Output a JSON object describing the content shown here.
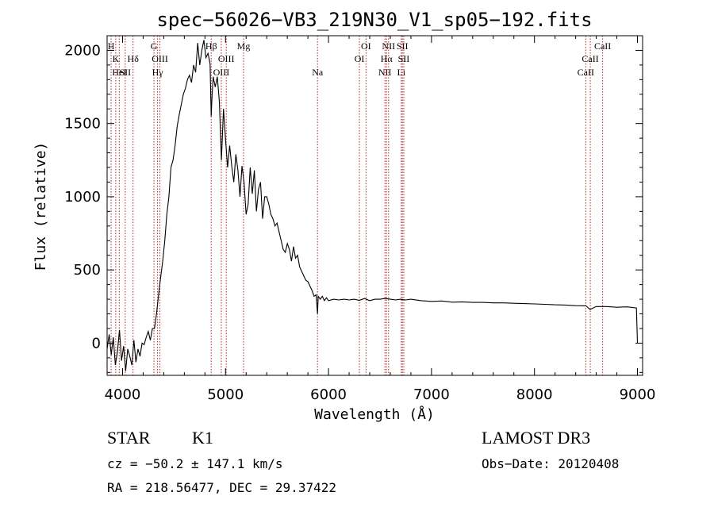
{
  "chart_data": {
    "type": "line",
    "title": "spec−56026−VB3_219N30_V1_sp05−192.fits",
    "xlabel": "Wavelength (Å)",
    "ylabel": "Flux (relative)",
    "xlim": [
      3850,
      9050
    ],
    "ylim": [
      -220,
      2100
    ],
    "xticks": [
      4000,
      5000,
      6000,
      7000,
      8000,
      9000
    ],
    "yticks": [
      0,
      500,
      1000,
      1500,
      2000
    ],
    "xtick_labels": [
      "4000",
      "5000",
      "6000",
      "7000",
      "8000",
      "9000"
    ],
    "ytick_labels": [
      "0",
      "500",
      "1000",
      "1500",
      "2000"
    ],
    "grid": false,
    "spectrum": {
      "x": [
        3850,
        3870,
        3890,
        3910,
        3930,
        3950,
        3970,
        3990,
        4010,
        4030,
        4050,
        4070,
        4090,
        4110,
        4130,
        4150,
        4170,
        4190,
        4210,
        4230,
        4250,
        4270,
        4290,
        4310,
        4330,
        4350,
        4370,
        4390,
        4410,
        4430,
        4450,
        4470,
        4490,
        4510,
        4530,
        4550,
        4570,
        4590,
        4610,
        4630,
        4650,
        4670,
        4690,
        4710,
        4730,
        4750,
        4770,
        4790,
        4810,
        4830,
        4850,
        4861,
        4870,
        4880,
        4900,
        4920,
        4940,
        4960,
        4980,
        5000,
        5020,
        5040,
        5060,
        5080,
        5100,
        5120,
        5140,
        5160,
        5180,
        5200,
        5220,
        5240,
        5260,
        5280,
        5300,
        5320,
        5340,
        5360,
        5380,
        5400,
        5420,
        5440,
        5460,
        5480,
        5500,
        5520,
        5540,
        5560,
        5580,
        5600,
        5620,
        5640,
        5660,
        5680,
        5700,
        5720,
        5740,
        5760,
        5780,
        5800,
        5820,
        5840,
        5860,
        5880,
        5893,
        5900,
        5920,
        5940,
        5960,
        5980,
        6000,
        6050,
        6100,
        6150,
        6200,
        6250,
        6300,
        6350,
        6400,
        6450,
        6500,
        6550,
        6600,
        6650,
        6700,
        6750,
        6800,
        6900,
        7000,
        7100,
        7200,
        7300,
        7400,
        7500,
        7600,
        7700,
        7800,
        7900,
        8000,
        8100,
        8200,
        8300,
        8400,
        8500,
        8540,
        8600,
        8700,
        8800,
        8900,
        8990,
        9000
      ],
      "y": [
        -40,
        60,
        -80,
        40,
        -150,
        -60,
        90,
        -120,
        -20,
        -190,
        -40,
        -90,
        -150,
        20,
        -130,
        -40,
        -90,
        0,
        -10,
        40,
        80,
        20,
        100,
        100,
        200,
        330,
        450,
        560,
        700,
        880,
        1000,
        1200,
        1250,
        1350,
        1480,
        1560,
        1630,
        1700,
        1740,
        1800,
        1830,
        1780,
        1900,
        1850,
        2050,
        1900,
        2000,
        2070,
        1950,
        1980,
        1910,
        1550,
        1700,
        1820,
        1750,
        1820,
        1650,
        1250,
        1600,
        1390,
        1200,
        1350,
        1210,
        1100,
        1290,
        1180,
        1000,
        1210,
        1100,
        880,
        950,
        1200,
        1020,
        1180,
        900,
        1050,
        1100,
        850,
        1000,
        1000,
        950,
        880,
        850,
        800,
        820,
        760,
        700,
        640,
        620,
        680,
        640,
        560,
        660,
        580,
        600,
        520,
        490,
        460,
        430,
        420,
        390,
        360,
        320,
        330,
        200,
        320,
        300,
        320,
        290,
        310,
        290,
        300,
        295,
        300,
        295,
        300,
        292,
        305,
        290,
        300,
        300,
        305,
        300,
        295,
        300,
        295,
        300,
        290,
        285,
        288,
        280,
        282,
        278,
        278,
        275,
        275,
        272,
        270,
        268,
        265,
        262,
        260,
        256,
        255,
        230,
        250,
        250,
        245,
        248,
        240,
        0
      ]
    },
    "lines": [
      {
        "wl": 3889,
        "label": "H",
        "row": 1
      },
      {
        "wl": 3934,
        "label": "K",
        "row": 2
      },
      {
        "wl": 3968,
        "label": "HeI",
        "row": 3
      },
      {
        "wl": 4026,
        "label": "SII",
        "row": 3
      },
      {
        "wl": 4102,
        "label": "Hδ",
        "row": 2
      },
      {
        "wl": 4305,
        "label": "G",
        "row": 1
      },
      {
        "wl": 4340,
        "label": "Hγ",
        "row": 3
      },
      {
        "wl": 4363,
        "label": "OIII",
        "row": 2
      },
      {
        "wl": 4861,
        "label": "Hβ",
        "row": 1
      },
      {
        "wl": 4959,
        "label": "OIII",
        "row": 3
      },
      {
        "wl": 5007,
        "label": "OIII",
        "row": 2
      },
      {
        "wl": 5175,
        "label": "Mg",
        "row": 1
      },
      {
        "wl": 5893,
        "label": "Na",
        "row": 3
      },
      {
        "wl": 6300,
        "label": "OI",
        "row": 2
      },
      {
        "wl": 6364,
        "label": "OI",
        "row": 1
      },
      {
        "wl": 6548,
        "label": "NII",
        "row": 3
      },
      {
        "wl": 6563,
        "label": "Hα",
        "row": 2
      },
      {
        "wl": 6583,
        "label": "NII",
        "row": 1
      },
      {
        "wl": 6707,
        "label": "Li",
        "row": 3
      },
      {
        "wl": 6717,
        "label": "SII",
        "row": 1
      },
      {
        "wl": 6731,
        "label": "SII",
        "row": 2
      },
      {
        "wl": 8498,
        "label": "CaII",
        "row": 3
      },
      {
        "wl": 8542,
        "label": "CaII",
        "row": 2
      },
      {
        "wl": 8662,
        "label": "CaII",
        "row": 1
      }
    ]
  },
  "info": {
    "object_class": "STAR",
    "subclass": "K1",
    "redshift_line": "cz = −50.2 ± 147.1 km/s",
    "coords_line": "RA = 218.56477, DEC =  29.37422",
    "survey": "LAMOST DR3",
    "obs_date_line": "Obs−Date: 20120408"
  },
  "colors": {
    "spectrum": "#000000",
    "line_marker": "#b22222",
    "axes": "#000000"
  }
}
